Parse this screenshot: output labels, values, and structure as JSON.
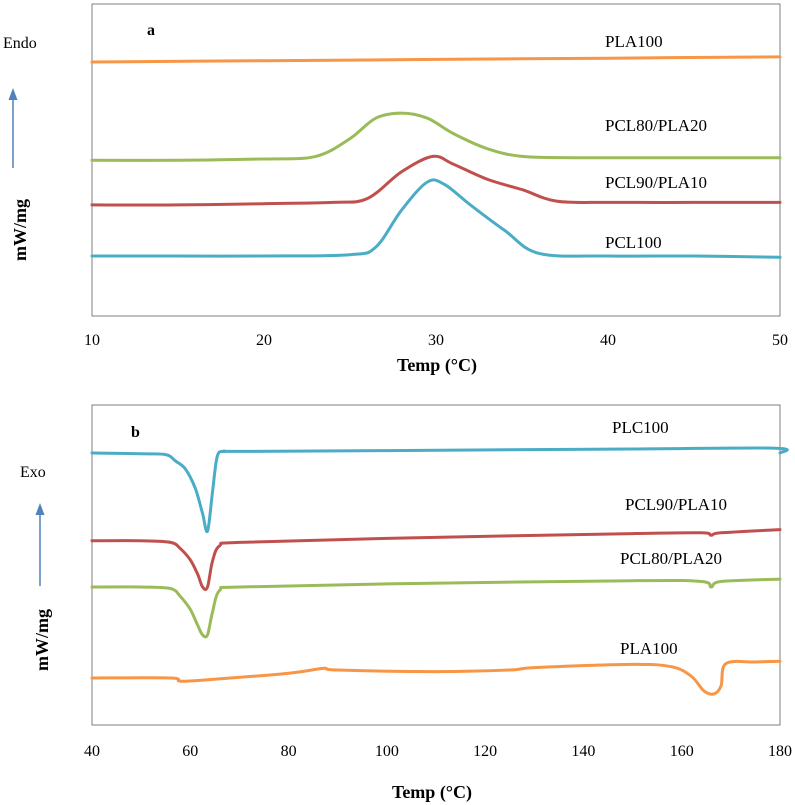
{
  "chart_data": [
    {
      "panel": "a",
      "type": "line",
      "xlabel": "Temp (°C)",
      "ylabel": "mW/mg",
      "direction_label": "Endo",
      "xlim": [
        10,
        50
      ],
      "xticks": [
        10,
        20,
        30,
        40,
        50
      ],
      "grid": false,
      "legend": "none",
      "series": [
        {
          "name": "PLA100",
          "color": "#f79646",
          "x": [
            10,
            20,
            30,
            40,
            50
          ],
          "y": [
            9.1,
            9.15,
            9.2,
            9.25,
            9.3
          ]
        },
        {
          "name": "PCL80/PLA20",
          "color": "#9bbb59",
          "x": [
            10,
            15,
            20,
            23,
            25,
            26.5,
            28,
            29.5,
            31,
            33,
            35,
            38,
            42,
            46,
            50
          ],
          "y": [
            5.25,
            5.25,
            5.3,
            5.4,
            6.1,
            6.9,
            7.1,
            6.9,
            6.3,
            5.7,
            5.4,
            5.35,
            5.35,
            5.35,
            5.35
          ]
        },
        {
          "name": "PCL90/PLA10",
          "color": "#c0504d",
          "x": [
            10,
            15,
            20,
            24,
            26,
            28,
            29.8,
            31,
            33,
            35,
            37,
            40,
            45,
            50
          ],
          "y": [
            3.5,
            3.5,
            3.55,
            3.6,
            3.75,
            4.8,
            5.4,
            5.1,
            4.5,
            4.1,
            3.65,
            3.6,
            3.6,
            3.6
          ]
        },
        {
          "name": "PCL100",
          "color": "#4bacc6",
          "x": [
            10,
            15,
            20,
            25,
            26.5,
            28,
            29.5,
            30.5,
            32,
            34,
            36,
            40,
            45,
            50
          ],
          "y": [
            1.5,
            1.5,
            1.5,
            1.55,
            1.85,
            3.3,
            4.4,
            4.3,
            3.5,
            2.5,
            1.6,
            1.5,
            1.5,
            1.45
          ]
        }
      ]
    },
    {
      "panel": "b",
      "type": "line",
      "xlabel": "Temp (°C)",
      "ylabel": "mW/mg",
      "direction_label": "Exo",
      "xlim": [
        40,
        180
      ],
      "xticks": [
        40,
        60,
        80,
        100,
        120,
        140,
        160,
        180
      ],
      "grid": false,
      "legend": "none",
      "series": [
        {
          "name": "PLC100",
          "color": "#4bacc6",
          "x": [
            40,
            50,
            55,
            57,
            59,
            61,
            62.5,
            63.5,
            64.5,
            65.5,
            67,
            70,
            100,
            150,
            179,
            180
          ],
          "y": [
            12.0,
            11.95,
            11.9,
            11.5,
            11.0,
            9.8,
            8.2,
            7.1,
            9.5,
            11.8,
            12.1,
            12.1,
            12.15,
            12.25,
            12.3,
            12.0
          ]
        },
        {
          "name": "PCL90/PLA10",
          "color": "#c0504d",
          "x": [
            40,
            50,
            56,
            58,
            60,
            61.5,
            62.5,
            63.5,
            64.5,
            66,
            70,
            100,
            150,
            164,
            166,
            168,
            180
          ],
          "y": [
            6.5,
            6.5,
            6.4,
            6.0,
            5.3,
            4.4,
            3.6,
            3.6,
            5.2,
            6.2,
            6.4,
            6.65,
            6.95,
            7.0,
            6.85,
            7.0,
            7.2
          ]
        },
        {
          "name": "PCL80/PLA20",
          "color": "#9bbb59",
          "x": [
            40,
            50,
            56,
            58,
            60,
            61.5,
            62.5,
            63.5,
            64.5,
            66,
            70,
            100,
            150,
            164,
            166,
            168,
            180
          ],
          "y": [
            3.6,
            3.6,
            3.5,
            3.0,
            2.2,
            1.2,
            0.6,
            0.6,
            2.0,
            3.4,
            3.6,
            3.8,
            4.0,
            3.95,
            3.6,
            3.95,
            4.1
          ]
        },
        {
          "name": "PLA100",
          "color": "#f79646",
          "x": [
            40,
            56,
            58,
            64,
            80,
            87,
            90,
            110,
            125,
            130,
            150,
            158,
            162,
            164.5,
            166.5,
            168,
            169,
            175,
            180
          ],
          "y": [
            -2.1,
            -2.1,
            -2.3,
            -2.2,
            -1.8,
            -1.5,
            -1.6,
            -1.7,
            -1.6,
            -1.45,
            -1.25,
            -1.4,
            -2.0,
            -2.9,
            -3.1,
            -2.6,
            -1.2,
            -1.1,
            -1.05
          ]
        }
      ]
    }
  ]
}
